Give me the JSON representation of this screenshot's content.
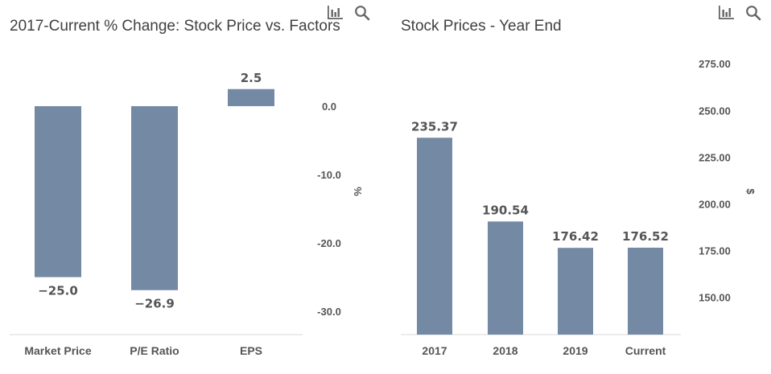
{
  "toolbar": {
    "chart_icon": "bar-chart-icon",
    "search_icon": "search-icon"
  },
  "colors": {
    "bar": "#7489a3",
    "axis": "#d9d9d9",
    "text": "#555555",
    "title": "#404040"
  },
  "chart_data": [
    {
      "type": "bar",
      "title": "2017-Current % Change: Stock Price vs. Factors",
      "categories": [
        "Market Price",
        "P/E Ratio",
        "EPS"
      ],
      "values": [
        -25.0,
        -26.9,
        2.5
      ],
      "data_labels": [
        "−25.0",
        "−26.9",
        "2.5"
      ],
      "ylabel": "%",
      "yaxis_position": "right",
      "yticks": [
        0.0,
        -10.0,
        -20.0,
        -30.0
      ],
      "ytick_labels": [
        "0.0",
        "-10.0",
        "-20.0",
        "-30.0"
      ],
      "ylim": [
        -33.4,
        4.0
      ],
      "grid": false,
      "legend": "none"
    },
    {
      "type": "bar",
      "title": "Stock Prices - Year End",
      "categories": [
        "2017",
        "2018",
        "2019",
        "Current"
      ],
      "values": [
        235.37,
        190.54,
        176.42,
        176.52
      ],
      "data_labels": [
        "235.37",
        "190.54",
        "176.42",
        "176.52"
      ],
      "ylabel": "$",
      "yaxis_position": "right",
      "yticks": [
        150.0,
        175.0,
        200.0,
        225.0,
        250.0,
        275.0
      ],
      "ytick_labels": [
        "150.00",
        "175.00",
        "200.00",
        "225.00",
        "250.00",
        "275.00"
      ],
      "ylim": [
        130.0,
        285.0
      ],
      "grid": false,
      "legend": "none"
    }
  ]
}
